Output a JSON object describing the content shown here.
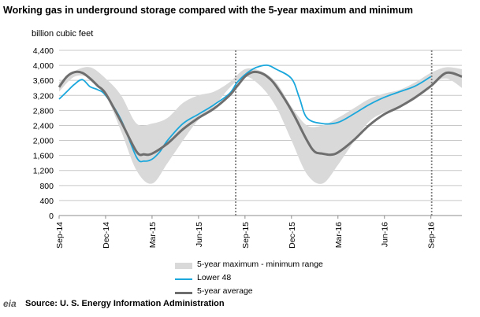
{
  "title": "Working gas in underground storage compared with the  5-year maximum and minimum",
  "source": "Source:  U. S. Energy Information Administration",
  "logo": "eia",
  "colors": {
    "range": "#d9d9d9",
    "lower48": "#1aa7dc",
    "avg": "#6e6e6e",
    "grid": "#c8c8c8",
    "divider": "#7f7f7f"
  },
  "chart_data": {
    "type": "area",
    "ylabel": "billion  cubic feet",
    "ylim": [
      0,
      4400
    ],
    "yticks": [
      0,
      400,
      800,
      1200,
      1600,
      2000,
      2400,
      2800,
      3200,
      3600,
      4000,
      4400
    ],
    "ytick_labels": [
      "0",
      "400",
      "800",
      "1,200",
      "1,600",
      "2,000",
      "2,400",
      "2,800",
      "3,200",
      "3,600",
      "4,000",
      "4,400"
    ],
    "xlim": [
      0,
      26
    ],
    "xticks": [
      0,
      3,
      6,
      9,
      12,
      15,
      18,
      21,
      24
    ],
    "xtick_labels": [
      "Sep-14",
      "Dec-14",
      "Mar-15",
      "Jun-15",
      "Sep-15",
      "Dec-15",
      "Mar-16",
      "Jun-16",
      "Sep-16"
    ],
    "dividers": [
      11.4,
      24.05
    ],
    "grid": "horizontal",
    "legend_position": "bottom",
    "series": [
      {
        "name": "5-year maximum - minimum range",
        "kind": "band",
        "x": [
          0,
          1,
          2,
          3,
          4,
          5,
          6,
          7,
          8,
          9,
          10,
          11,
          12,
          13,
          14,
          15,
          16,
          17,
          18,
          19,
          20,
          21,
          22,
          23,
          24,
          25,
          26
        ],
        "upper": [
          3550,
          3850,
          3950,
          3650,
          3200,
          2450,
          2450,
          2600,
          3000,
          3200,
          3300,
          3550,
          3900,
          3850,
          3550,
          2900,
          2400,
          2400,
          2600,
          2850,
          3100,
          3250,
          3350,
          3550,
          3800,
          3950,
          3900
        ],
        "lower": [
          3300,
          3700,
          3650,
          3200,
          2250,
          1200,
          850,
          1400,
          2000,
          2550,
          2900,
          3400,
          3700,
          3450,
          2900,
          2000,
          1100,
          850,
          1350,
          1950,
          2500,
          2750,
          2900,
          3100,
          3500,
          3650,
          3400
        ]
      },
      {
        "name": "Lower 48",
        "kind": "line",
        "x": [
          0,
          0.5,
          1,
          1.5,
          2,
          2.5,
          3,
          4,
          5,
          5.5,
          6,
          6.5,
          7,
          8,
          9,
          10,
          11,
          11.5,
          12,
          12.5,
          13,
          13.5,
          14,
          15,
          15.5,
          16,
          17,
          18,
          19,
          20,
          21,
          22,
          23,
          24
        ],
        "values": [
          3100,
          3300,
          3500,
          3620,
          3430,
          3350,
          3200,
          2550,
          1550,
          1450,
          1500,
          1700,
          2000,
          2450,
          2700,
          2950,
          3250,
          3550,
          3750,
          3900,
          3980,
          4000,
          3900,
          3650,
          3150,
          2600,
          2450,
          2480,
          2700,
          2950,
          3150,
          3300,
          3450,
          3700
        ]
      },
      {
        "name": "5-year average",
        "kind": "line",
        "x": [
          0,
          0.5,
          1,
          1.5,
          2,
          2.5,
          3,
          4,
          5,
          5.5,
          6,
          7,
          8,
          9,
          10,
          11,
          11.5,
          12,
          12.5,
          13,
          13.5,
          14,
          15,
          16,
          16.5,
          17,
          17.5,
          18,
          19,
          20,
          21,
          22,
          23,
          24,
          25,
          26
        ],
        "values": [
          3420,
          3700,
          3820,
          3800,
          3650,
          3450,
          3250,
          2500,
          1700,
          1630,
          1650,
          1920,
          2300,
          2600,
          2850,
          3200,
          3450,
          3700,
          3820,
          3800,
          3680,
          3450,
          2800,
          2000,
          1700,
          1650,
          1620,
          1680,
          2000,
          2400,
          2700,
          2900,
          3150,
          3450,
          3800,
          3700
        ]
      }
    ]
  }
}
